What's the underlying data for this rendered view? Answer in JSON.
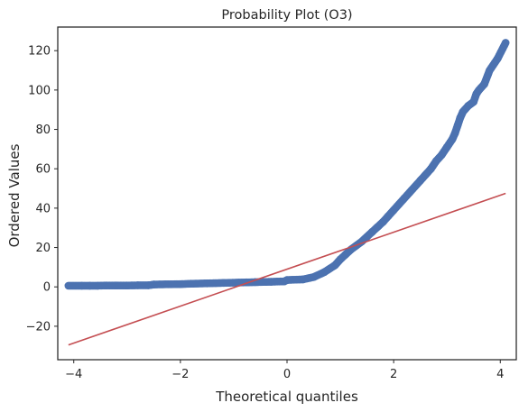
{
  "chart_data": {
    "type": "scatter",
    "title": "Probability Plot (O3)",
    "xlabel": "Theoretical quantiles",
    "ylabel": "Ordered Values",
    "xlim": [
      -4.3,
      4.3
    ],
    "ylim": [
      -37,
      132
    ],
    "x_ticks": [
      -4,
      -2,
      0,
      2,
      4
    ],
    "x_tick_labels": [
      "−4",
      "−2",
      "0",
      "2",
      "4"
    ],
    "y_ticks": [
      -20,
      0,
      20,
      40,
      60,
      80,
      100,
      120
    ],
    "y_tick_labels": [
      "−20",
      "0",
      "20",
      "40",
      "60",
      "80",
      "100",
      "120"
    ],
    "grid": false,
    "legend": "none",
    "series": [
      {
        "kind": "points",
        "color": "#4c72b0",
        "points": [
          [
            -4.1,
            0.6
          ],
          [
            -3.85,
            0.6
          ],
          [
            -3.7,
            0.6
          ],
          [
            -3.55,
            0.6
          ],
          [
            -3.4,
            0.7
          ],
          [
            -3.2,
            0.7
          ],
          [
            -3.0,
            0.7
          ],
          [
            -2.8,
            0.8
          ],
          [
            -2.6,
            0.8
          ],
          [
            -2.5,
            1.2
          ],
          [
            -2.3,
            1.3
          ],
          [
            -2.0,
            1.4
          ],
          [
            -1.8,
            1.6
          ],
          [
            -1.5,
            1.8
          ],
          [
            -1.2,
            2.0
          ],
          [
            -0.9,
            2.2
          ],
          [
            -0.6,
            2.4
          ],
          [
            -0.3,
            2.6
          ],
          [
            -0.05,
            2.8
          ],
          [
            0.0,
            3.5
          ],
          [
            0.3,
            3.8
          ],
          [
            0.5,
            5.0
          ],
          [
            0.7,
            7.5
          ],
          [
            0.9,
            11
          ],
          [
            1.0,
            14
          ],
          [
            1.1,
            16.5
          ],
          [
            1.2,
            19
          ],
          [
            1.3,
            21
          ],
          [
            1.4,
            23
          ],
          [
            1.5,
            25.5
          ],
          [
            1.6,
            28
          ],
          [
            1.7,
            30.5
          ],
          [
            1.8,
            33
          ],
          [
            1.9,
            36
          ],
          [
            2.0,
            39
          ],
          [
            2.1,
            42
          ],
          [
            2.2,
            45
          ],
          [
            2.3,
            48
          ],
          [
            2.4,
            51
          ],
          [
            2.5,
            54
          ],
          [
            2.6,
            57
          ],
          [
            2.7,
            60
          ],
          [
            2.8,
            64
          ],
          [
            2.9,
            67
          ],
          [
            3.0,
            71
          ],
          [
            3.1,
            75
          ],
          [
            3.15,
            78
          ],
          [
            3.2,
            82
          ],
          [
            3.25,
            86
          ],
          [
            3.3,
            89
          ],
          [
            3.4,
            92
          ],
          [
            3.5,
            94
          ],
          [
            3.55,
            98
          ],
          [
            3.6,
            100
          ],
          [
            3.7,
            103
          ],
          [
            3.8,
            110
          ],
          [
            3.95,
            116
          ],
          [
            4.1,
            124
          ]
        ]
      },
      {
        "kind": "line",
        "color": "#c44e52",
        "points": [
          [
            -4.1,
            -29.5
          ],
          [
            4.1,
            47.5
          ]
        ]
      }
    ]
  }
}
